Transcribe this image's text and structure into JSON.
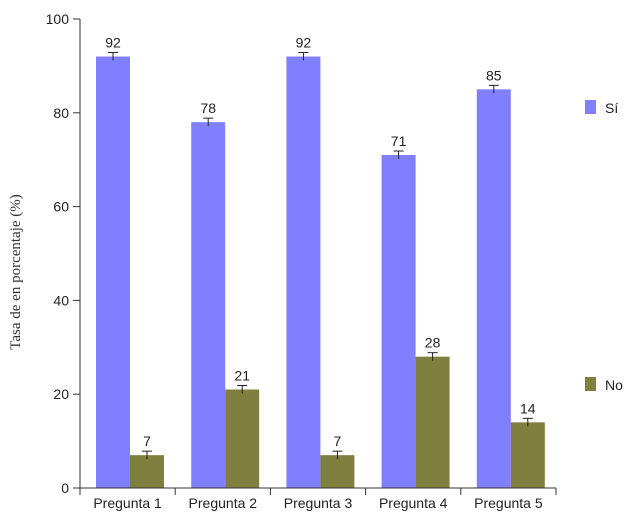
{
  "chart_data": {
    "type": "bar",
    "title": "",
    "xlabel": "",
    "ylabel": "Tasa de en porcentaje (%)",
    "ylim": [
      0,
      100
    ],
    "yticks": [
      0,
      20,
      40,
      60,
      80,
      100
    ],
    "categories": [
      "Pregunta 1",
      "Pregunta 2",
      "Pregunta 3",
      "Pregunta 4",
      "Pregunta 5"
    ],
    "series": [
      {
        "name": "Sí",
        "color": "#7f7fff",
        "values": [
          92,
          78,
          92,
          71,
          85
        ]
      },
      {
        "name": "No",
        "color": "#7f7f3f",
        "values": [
          7,
          21,
          7,
          28,
          14
        ]
      }
    ],
    "error_bars": true,
    "grid": false,
    "legend_position": "right"
  }
}
